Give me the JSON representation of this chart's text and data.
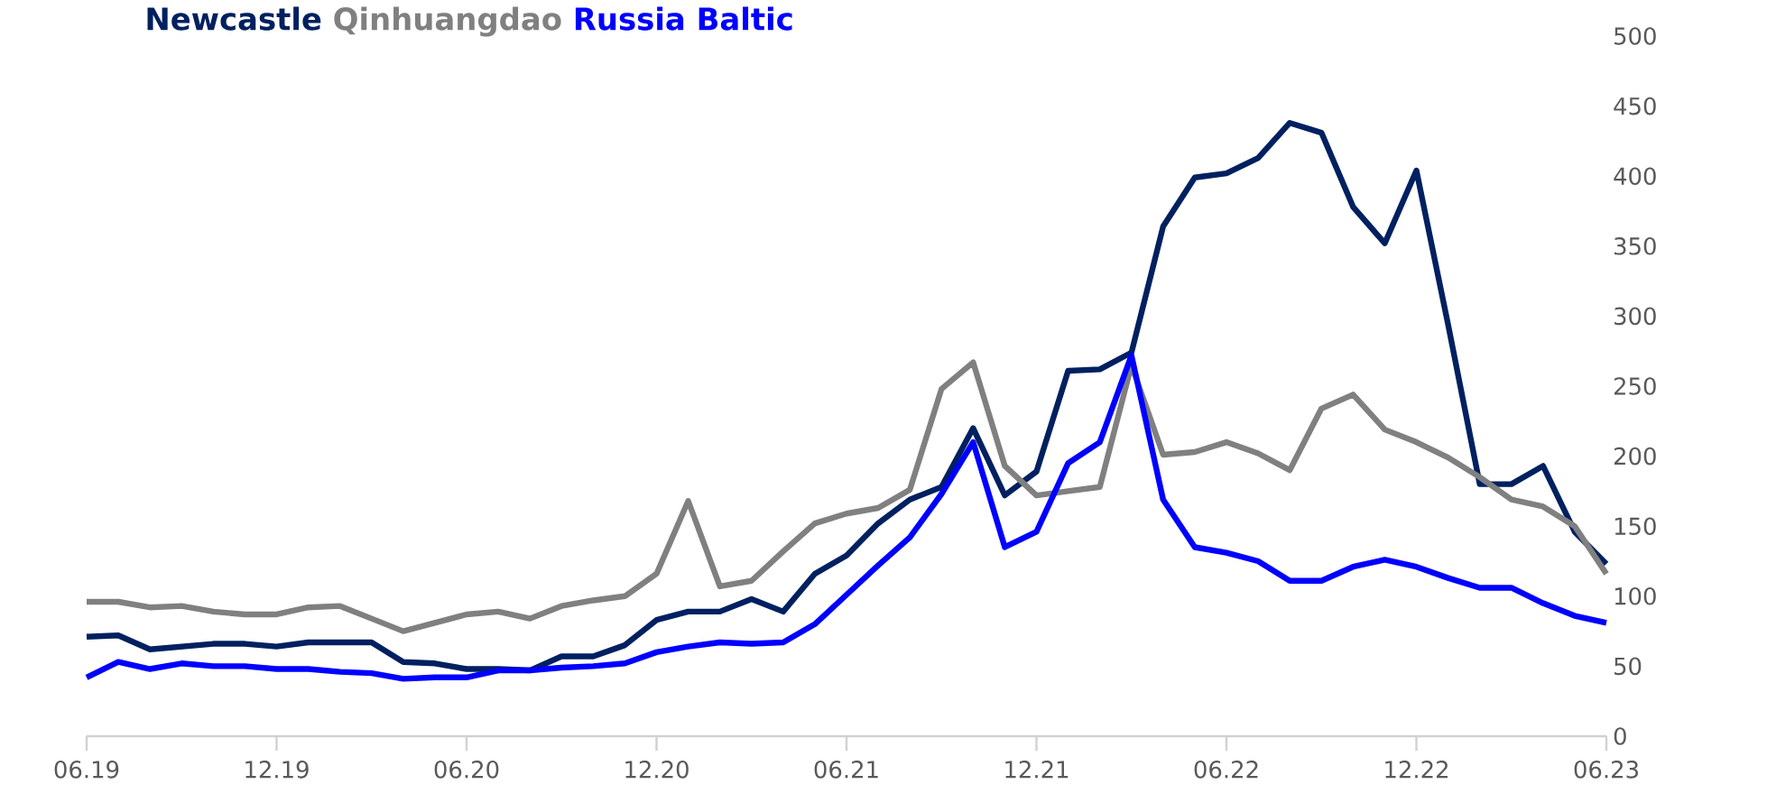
{
  "chart_data": {
    "type": "line",
    "categories": [
      "06.19",
      null,
      null,
      null,
      null,
      null,
      "12.19",
      null,
      null,
      null,
      null,
      null,
      "06.20",
      null,
      null,
      null,
      null,
      null,
      "12.20",
      null,
      null,
      null,
      null,
      null,
      "06.21",
      null,
      null,
      null,
      null,
      null,
      "12.21",
      null,
      null,
      null,
      null,
      null,
      "06.22",
      null,
      null,
      null,
      null,
      null,
      "12.22",
      null,
      null,
      null,
      null,
      null,
      "06.23"
    ],
    "series": [
      {
        "name": "Newcastle",
        "color": "#002060",
        "values": [
          71,
          72,
          62,
          64,
          66,
          66,
          64,
          67,
          67,
          67,
          53,
          52,
          48,
          48,
          47,
          57,
          57,
          65,
          83,
          89,
          89,
          98,
          89,
          116,
          129,
          152,
          169,
          178,
          220,
          172,
          189,
          261,
          262,
          274,
          364,
          399,
          402,
          413,
          438,
          431,
          378,
          352,
          404,
          294,
          180,
          180,
          193,
          146,
          123
        ]
      },
      {
        "name": "Qinhuangdao",
        "color": "#808080",
        "values": [
          96,
          96,
          92,
          93,
          89,
          87,
          87,
          92,
          93,
          84,
          75,
          81,
          87,
          89,
          84,
          93,
          97,
          100,
          116,
          168,
          107,
          111,
          132,
          152,
          159,
          163,
          176,
          248,
          267,
          193,
          172,
          175,
          178,
          265,
          201,
          203,
          210,
          202,
          190,
          234,
          244,
          219,
          210,
          199,
          185,
          169,
          164,
          150,
          116
        ]
      },
      {
        "name": "Russia Baltic",
        "color": "#0000ff",
        "values": [
          42,
          53,
          48,
          52,
          50,
          50,
          48,
          48,
          46,
          45,
          41,
          42,
          42,
          47,
          47,
          49,
          50,
          52,
          60,
          64,
          67,
          66,
          67,
          80,
          101,
          122,
          142,
          173,
          210,
          135,
          146,
          195,
          210,
          272,
          169,
          135,
          131,
          125,
          111,
          111,
          121,
          126,
          121,
          113,
          106,
          106,
          95,
          86,
          81
        ]
      }
    ],
    "ylim": [
      0,
      500
    ],
    "yticks": [
      0,
      50,
      100,
      150,
      200,
      250,
      300,
      350,
      400,
      450,
      500
    ],
    "legend": "top left",
    "grid": false,
    "line_style": "solid",
    "marker": "none"
  }
}
